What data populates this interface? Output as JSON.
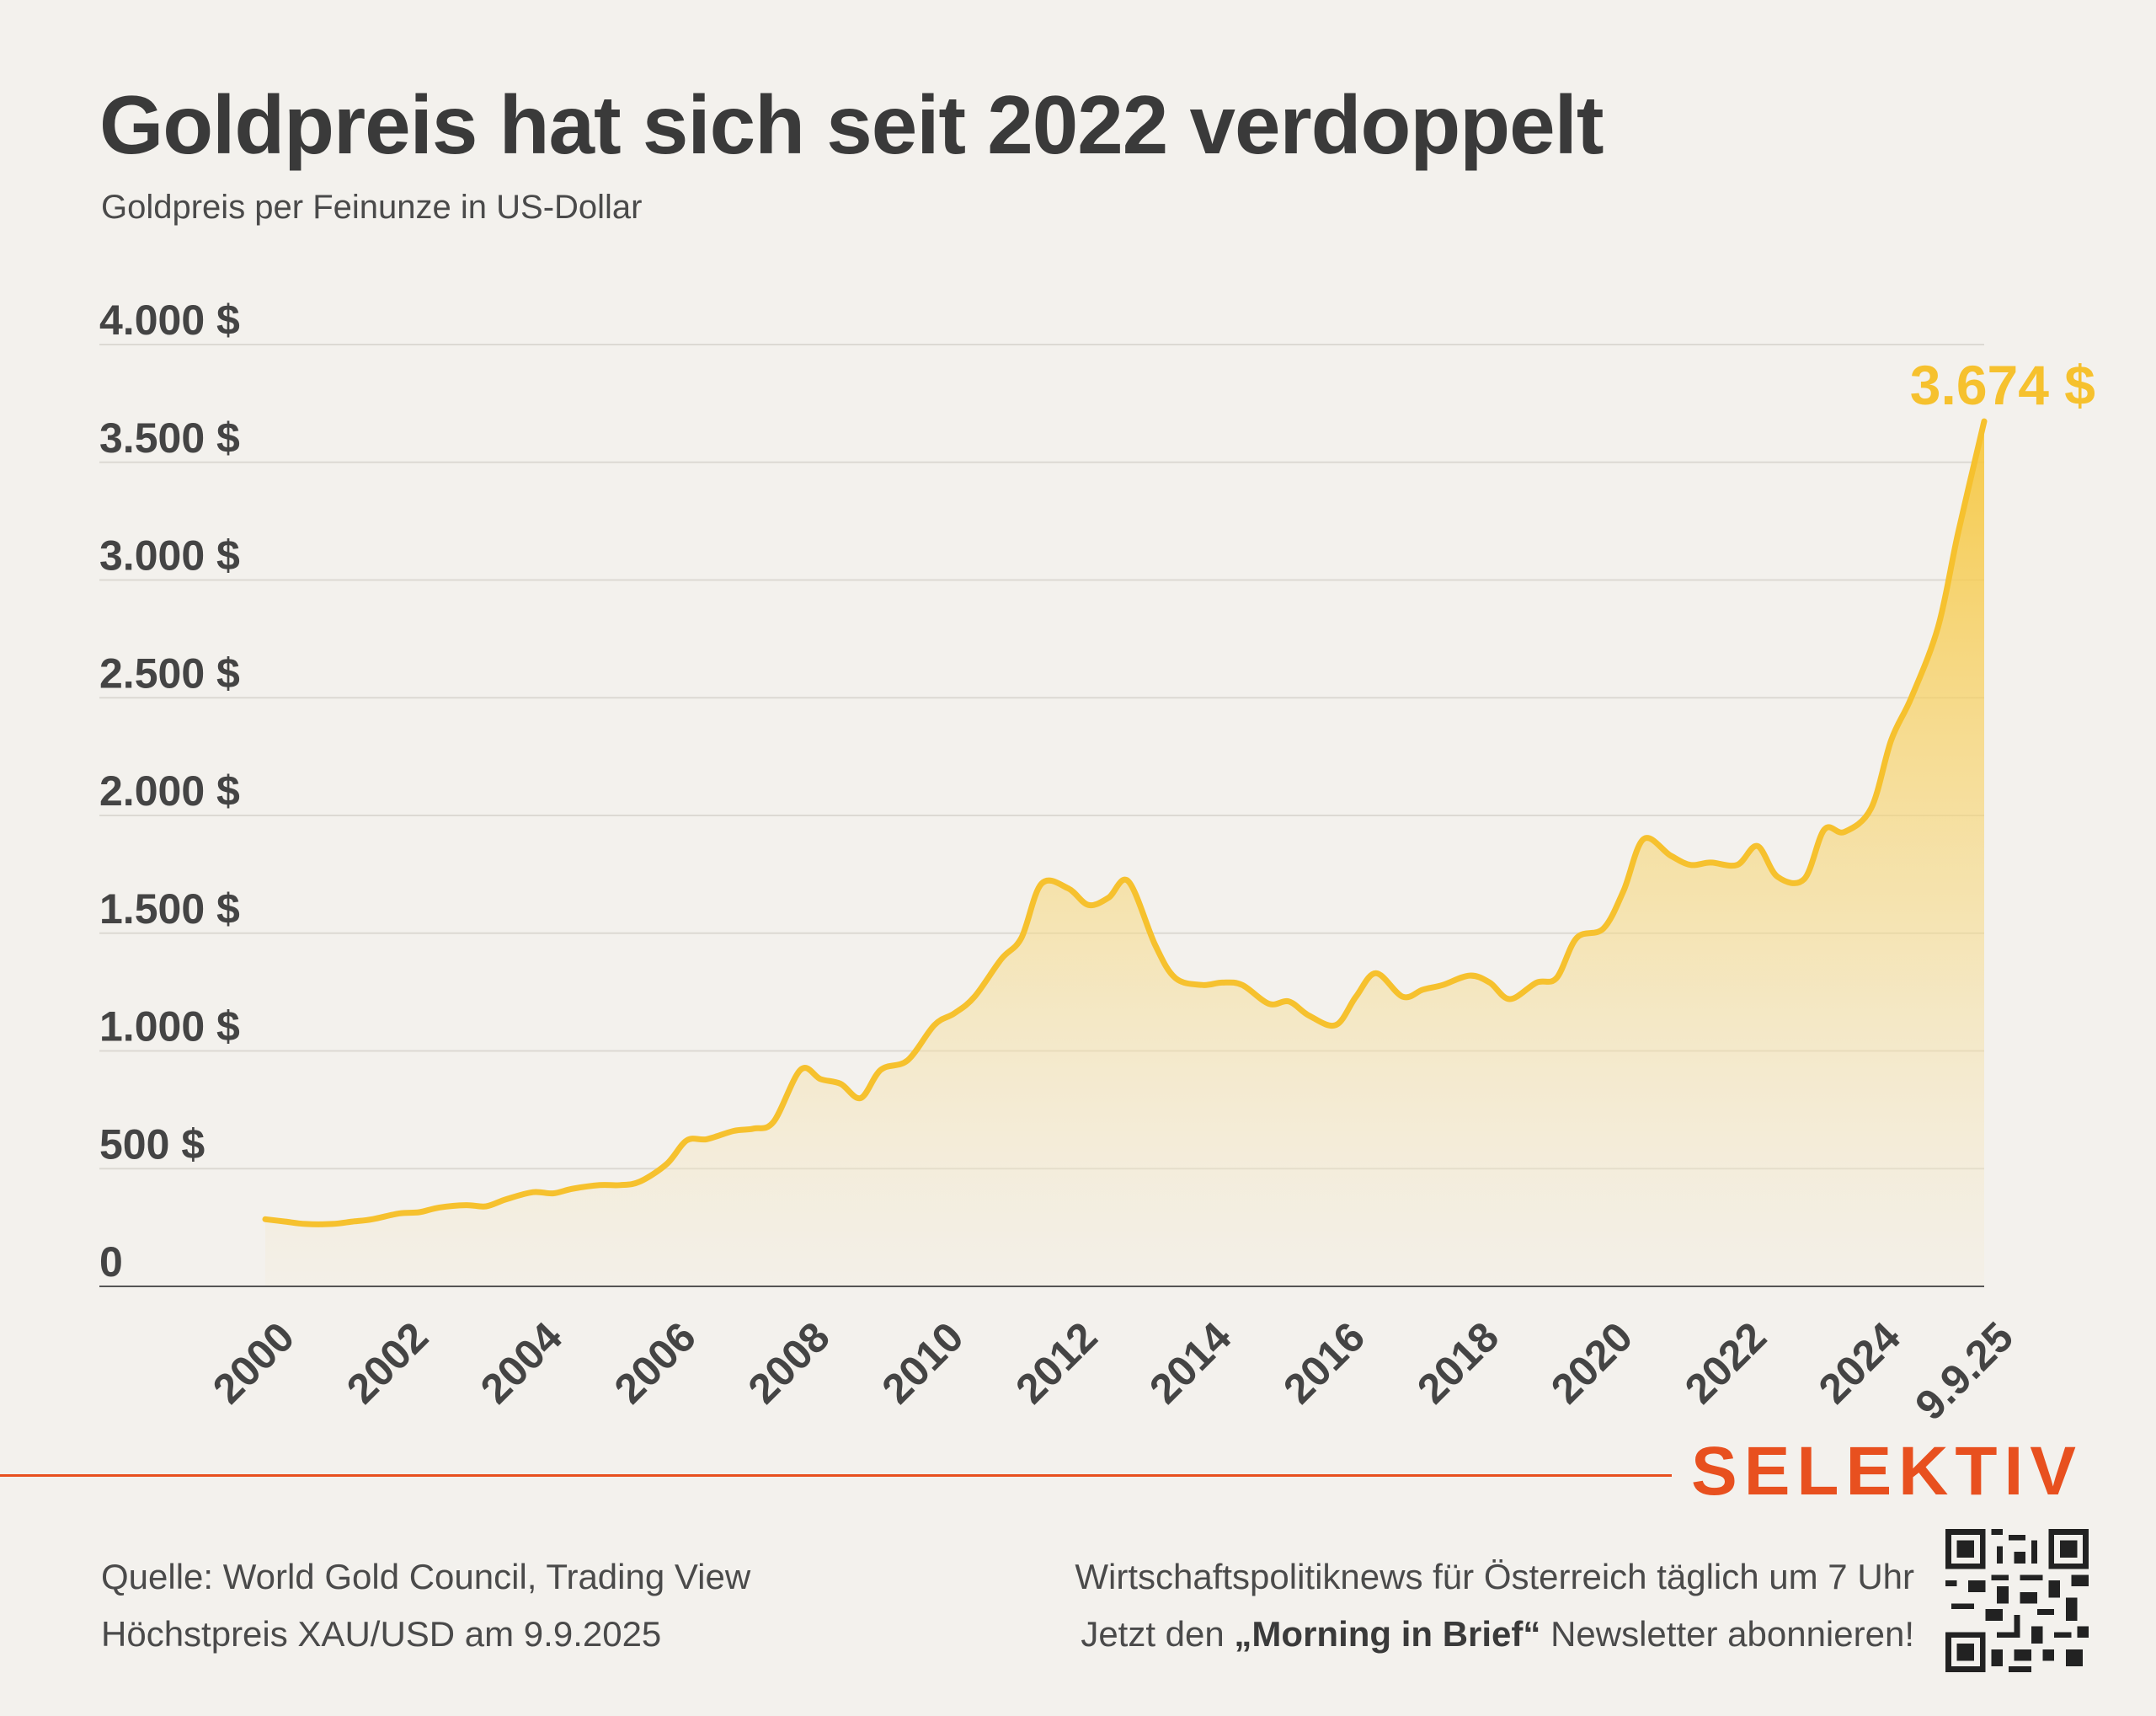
{
  "header": {
    "title": "Goldpreis hat sich seit 2022 verdoppelt",
    "subtitle": "Goldpreis per Feinunze in US-Dollar"
  },
  "colors": {
    "line": "#f6c12e",
    "fill_top": "#f7c63a",
    "brand": "#e8501f",
    "grid": "#dcd9d3",
    "background": "#f3f1ed"
  },
  "chart_data": {
    "type": "area",
    "title": "Goldpreis hat sich seit 2022 verdoppelt",
    "ylabel": "Goldpreis per Feinunze in US-Dollar",
    "ylim": [
      0,
      4000
    ],
    "yticks": [
      0,
      500,
      1000,
      1500,
      2000,
      2500,
      3000,
      3500,
      4000
    ],
    "ytick_labels": [
      "0",
      "500 $",
      "1.000 $",
      "1.500 $",
      "2.000 $",
      "2.500 $",
      "3.000 $",
      "3.500 $",
      "4.000 $"
    ],
    "xlim": [
      2000.0,
      2025.69
    ],
    "xticks": [
      2000,
      2002,
      2004,
      2006,
      2008,
      2010,
      2012,
      2014,
      2016,
      2018,
      2020,
      2022,
      2024,
      2025.69
    ],
    "xtick_labels": [
      "2000",
      "2002",
      "2004",
      "2006",
      "2008",
      "2010",
      "2012",
      "2014",
      "2016",
      "2018",
      "2020",
      "2022",
      "2024",
      "9.9.25"
    ],
    "grid": true,
    "last_value_label": "3.674 $",
    "series": [
      {
        "name": "XAU/USD",
        "x": [
          2000.0,
          2000.3,
          2000.6,
          2001.0,
          2001.3,
          2001.6,
          2002.0,
          2002.3,
          2002.6,
          2003.0,
          2003.3,
          2003.6,
          2004.0,
          2004.3,
          2004.6,
          2005.0,
          2005.3,
          2005.6,
          2006.0,
          2006.3,
          2006.6,
          2007.0,
          2007.3,
          2007.6,
          2008.0,
          2008.3,
          2008.6,
          2008.9,
          2009.2,
          2009.6,
          2010.0,
          2010.3,
          2010.6,
          2011.0,
          2011.3,
          2011.6,
          2012.0,
          2012.3,
          2012.6,
          2012.9,
          2013.3,
          2013.6,
          2014.0,
          2014.3,
          2014.6,
          2015.0,
          2015.3,
          2015.6,
          2016.0,
          2016.3,
          2016.6,
          2017.0,
          2017.3,
          2017.6,
          2018.0,
          2018.3,
          2018.6,
          2019.0,
          2019.3,
          2019.6,
          2020.0,
          2020.3,
          2020.6,
          2021.0,
          2021.3,
          2021.6,
          2022.0,
          2022.3,
          2022.6,
          2023.0,
          2023.3,
          2023.6,
          2024.0,
          2024.3,
          2024.6,
          2025.0,
          2025.3,
          2025.69
        ],
        "y": [
          285,
          275,
          265,
          265,
          275,
          285,
          310,
          315,
          335,
          345,
          340,
          370,
          400,
          395,
          415,
          430,
          430,
          445,
          520,
          620,
          625,
          660,
          670,
          700,
          920,
          880,
          860,
          800,
          920,
          960,
          1110,
          1160,
          1230,
          1390,
          1480,
          1710,
          1690,
          1620,
          1650,
          1720,
          1450,
          1310,
          1280,
          1290,
          1280,
          1200,
          1210,
          1150,
          1110,
          1230,
          1330,
          1230,
          1260,
          1280,
          1320,
          1290,
          1220,
          1290,
          1310,
          1480,
          1520,
          1680,
          1900,
          1830,
          1790,
          1800,
          1790,
          1870,
          1740,
          1730,
          1940,
          1930,
          2030,
          2320,
          2500,
          2800,
          3200,
          3674
        ]
      }
    ]
  },
  "footer": {
    "brand": "SELEKTIV",
    "source": "Quelle: World Gold Council, Trading View",
    "note": "Höchstpreis XAU/USD am 9.9.2025",
    "promo_line1": "Wirtschaftspolitiknews für Österreich täglich um 7 Uhr",
    "promo_prefix": "Jetzt den ",
    "promo_bold": "„Morning in Brief“",
    "promo_suffix": " Newsletter abonnieren!"
  },
  "qr_icon": "qr-code-icon"
}
